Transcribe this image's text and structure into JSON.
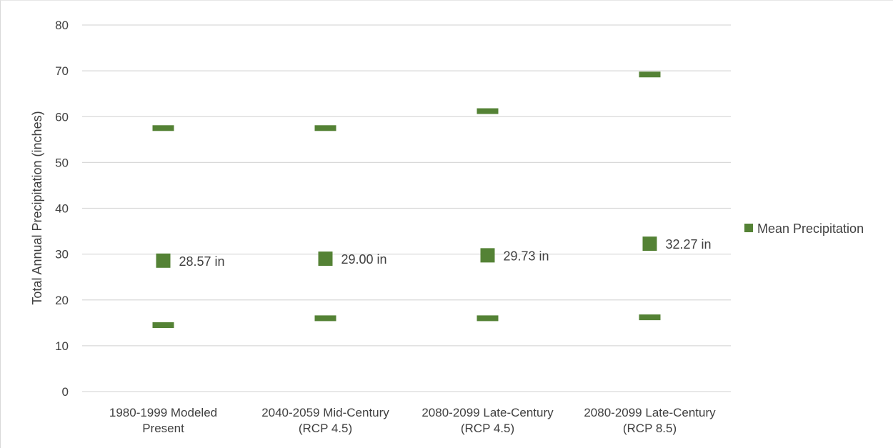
{
  "chart_data": {
    "type": "scatter",
    "ylabel": "Total Annual Precipitation (inches)",
    "ylim": [
      0,
      80
    ],
    "yticks": [
      0,
      10,
      20,
      30,
      40,
      50,
      60,
      70,
      80
    ],
    "grid": true,
    "legend_position": "right",
    "marker_color": "#548235",
    "categories": [
      [
        "1980-1999 Modeled",
        "Present"
      ],
      [
        "2040-2059 Mid-Century",
        "(RCP 4.5)"
      ],
      [
        "2080-2099 Late-Century",
        "(RCP 4.5)"
      ],
      [
        "2080-2099 Late-Century",
        "(RCP 8.5)"
      ]
    ],
    "series": [
      {
        "name": "Mean Precipitation",
        "values": [
          28.57,
          29.0,
          29.73,
          32.27
        ]
      },
      {
        "values": [
          57.5,
          57.5,
          61.2,
          69.2
        ]
      },
      {
        "values": [
          14.5,
          16.0,
          16.0,
          16.2
        ]
      }
    ],
    "data_labels": [
      "28.57 in",
      "29.00 in",
      "29.73 in",
      "32.27 in"
    ],
    "legend": [
      "Mean Precipitation"
    ]
  }
}
